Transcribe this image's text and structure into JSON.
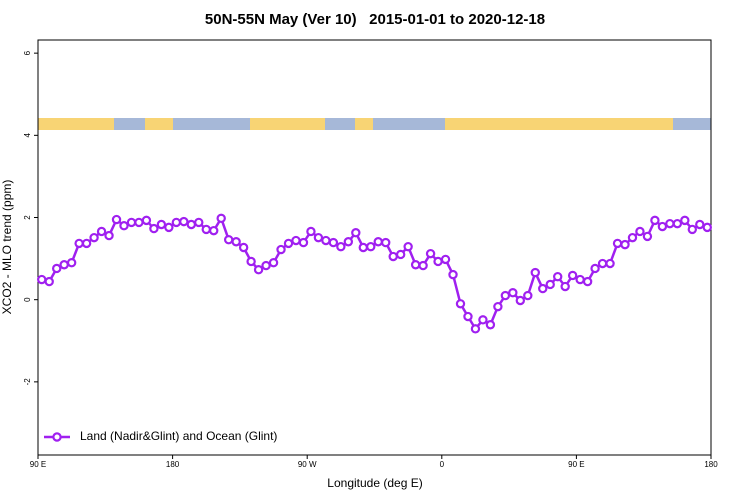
{
  "chart_data": {
    "type": "line",
    "title": "50N-55N May (Ver 10)   2015-01-01 to 2020-12-18",
    "xlabel": "Longitude (deg E)",
    "ylabel": "XCO2 - MLO trend (ppm)",
    "xlim": [
      90,
      540
    ],
    "ylim": [
      -3.78,
      6.32
    ],
    "xticks": [
      {
        "value": 90,
        "label": "90 E"
      },
      180,
      {
        "value": 270,
        "label": "90 W"
      },
      {
        "value": 360,
        "label": "0"
      },
      {
        "value": 450,
        "label": "90 E"
      },
      {
        "value": 540,
        "label": "180"
      }
    ],
    "yticks": [
      -2,
      0,
      2,
      4,
      6
    ],
    "legend": "bottomleft",
    "x": [
      92.5,
      97.5,
      102.5,
      107.5,
      112.5,
      117.5,
      122.5,
      127.5,
      132.5,
      137.5,
      142.5,
      147.5,
      152.5,
      157.5,
      162.5,
      167.5,
      172.5,
      177.5,
      182.5,
      187.5,
      192.5,
      197.5,
      202.5,
      207.5,
      212.5,
      217.5,
      222.5,
      227.5,
      232.5,
      237.5,
      242.5,
      247.5,
      252.5,
      257.5,
      262.5,
      267.5,
      272.5,
      277.5,
      282.5,
      287.5,
      292.5,
      297.5,
      302.5,
      307.5,
      312.5,
      317.5,
      322.5,
      327.5,
      332.5,
      337.5,
      342.5,
      347.5,
      352.5,
      357.5,
      362.5,
      367.5,
      372.5,
      377.5,
      382.5,
      387.5,
      392.5,
      397.5,
      402.5,
      407.5,
      412.5,
      417.5,
      422.5,
      427.5,
      432.5,
      437.5,
      442.5,
      447.5,
      452.5,
      457.5,
      462.5,
      467.5,
      472.5,
      477.5,
      482.5,
      487.5,
      492.5,
      497.5,
      502.5,
      507.5,
      512.5,
      517.5,
      522.5,
      527.5,
      532.5,
      537.5
    ],
    "series": [
      {
        "name": "Land (Nadir&Glint) and Ocean (Glint)",
        "color": "#a020f0",
        "values": [
          0.49,
          0.44,
          0.76,
          0.85,
          0.9,
          1.37,
          1.37,
          1.51,
          1.66,
          1.56,
          1.95,
          1.8,
          1.88,
          1.88,
          1.93,
          1.73,
          1.83,
          1.76,
          1.88,
          1.9,
          1.83,
          1.88,
          1.71,
          1.68,
          1.98,
          1.46,
          1.41,
          1.27,
          0.93,
          0.73,
          0.83,
          0.9,
          1.22,
          1.37,
          1.44,
          1.39,
          1.66,
          1.51,
          1.44,
          1.39,
          1.29,
          1.41,
          1.63,
          1.27,
          1.29,
          1.41,
          1.39,
          1.05,
          1.1,
          1.29,
          0.85,
          0.83,
          1.12,
          0.93,
          0.98,
          0.61,
          -0.1,
          -0.41,
          -0.71,
          -0.49,
          -0.61,
          -0.17,
          0.1,
          0.17,
          -0.02,
          0.1,
          0.66,
          0.27,
          0.37,
          0.56,
          0.32,
          0.59,
          0.49,
          0.44,
          0.76,
          0.88,
          0.88,
          1.37,
          1.34,
          1.51,
          1.66,
          1.54,
          1.93,
          1.78,
          1.85,
          1.85,
          1.93,
          1.71,
          1.83,
          1.76
        ]
      }
    ]
  }
}
